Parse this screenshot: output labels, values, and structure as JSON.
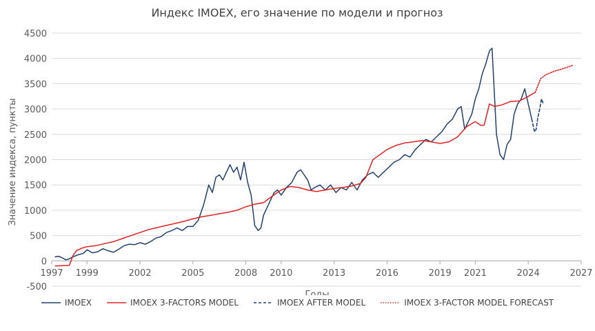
{
  "chart_data": {
    "type": "line",
    "title": "Индекс IMOEX, его значение по модели и прогноз",
    "xlabel": "Годы",
    "ylabel": "Значение индекса, пункты",
    "xlim": [
      1997,
      2027
    ],
    "ylim": [
      -500,
      4500
    ],
    "x_ticks": [
      1997,
      1999,
      2002,
      2005,
      2008,
      2010,
      2013,
      2016,
      2019,
      2021,
      2024,
      2027
    ],
    "x_tick_labels": [
      "1997",
      "1999",
      "2002",
      "2005",
      "2008",
      "2010",
      "2013",
      "2016",
      "2019",
      "2021",
      "2024",
      "2027"
    ],
    "y_ticks": [
      -500,
      0,
      500,
      1000,
      1500,
      2000,
      2500,
      3000,
      3500,
      4000,
      4500
    ],
    "y_tick_labels": [
      "-500",
      "0",
      "500",
      "1000",
      "1500",
      "2000",
      "2500",
      "3000",
      "3500",
      "4000",
      "4500"
    ],
    "legend_position": "bottom",
    "series": [
      {
        "name": "IMOEX",
        "color": "#1f3f6e",
        "style": "solid",
        "x": [
          1997.2,
          1997.4,
          1997.6,
          1997.8,
          1998.0,
          1998.2,
          1998.5,
          1998.8,
          1999.0,
          1999.3,
          1999.6,
          1999.9,
          2000.2,
          2000.5,
          2000.8,
          2001.1,
          2001.4,
          2001.7,
          2002.0,
          2002.3,
          2002.6,
          2002.9,
          2003.2,
          2003.5,
          2003.8,
          2004.1,
          2004.4,
          2004.7,
          2005.0,
          2005.3,
          2005.6,
          2005.9,
          2006.1,
          2006.3,
          2006.5,
          2006.7,
          2006.9,
          2007.1,
          2007.3,
          2007.5,
          2007.7,
          2007.9,
          2008.1,
          2008.3,
          2008.5,
          2008.7,
          2008.85,
          2009.0,
          2009.2,
          2009.4,
          2009.6,
          2009.8,
          2010.0,
          2010.3,
          2010.6,
          2010.9,
          2011.1,
          2011.3,
          2011.5,
          2011.7,
          2011.9,
          2012.2,
          2012.5,
          2012.8,
          2013.1,
          2013.4,
          2013.7,
          2014.0,
          2014.3,
          2014.6,
          2014.9,
          2015.2,
          2015.5,
          2015.8,
          2016.1,
          2016.4,
          2016.7,
          2017.0,
          2017.3,
          2017.6,
          2017.9,
          2018.2,
          2018.5,
          2018.8,
          2019.1,
          2019.4,
          2019.7,
          2020.0,
          2020.2,
          2020.4,
          2020.6,
          2020.8,
          2021.0,
          2021.2,
          2021.4,
          2021.6,
          2021.8,
          2021.95,
          2022.05,
          2022.2,
          2022.4,
          2022.6,
          2022.8,
          2023.0,
          2023.2,
          2023.4,
          2023.6,
          2023.8,
          2024.0,
          2024.2
        ],
        "y": [
          80,
          90,
          60,
          20,
          40,
          80,
          120,
          150,
          220,
          160,
          180,
          240,
          200,
          170,
          230,
          300,
          330,
          320,
          360,
          330,
          380,
          450,
          480,
          560,
          600,
          650,
          600,
          680,
          680,
          800,
          1100,
          1500,
          1350,
          1650,
          1700,
          1600,
          1750,
          1900,
          1750,
          1850,
          1600,
          1950,
          1550,
          1300,
          700,
          600,
          650,
          900,
          1050,
          1200,
          1350,
          1400,
          1300,
          1450,
          1550,
          1750,
          1800,
          1700,
          1600,
          1400,
          1450,
          1500,
          1400,
          1500,
          1350,
          1450,
          1400,
          1550,
          1400,
          1600,
          1700,
          1750,
          1650,
          1750,
          1850,
          1950,
          2000,
          2100,
          2050,
          2200,
          2300,
          2400,
          2350,
          2450,
          2550,
          2700,
          2800,
          3000,
          3050,
          2600,
          2750,
          2900,
          3200,
          3400,
          3700,
          3900,
          4150,
          4200,
          3500,
          2500,
          2100,
          2000,
          2300,
          2400,
          2900,
          3100,
          3200,
          3400,
          3100,
          2800
        ]
      },
      {
        "name": "IMOEX 3-FACTORS MODEL",
        "color": "#e02020",
        "style": "solid",
        "x": [
          1997.2,
          1997.6,
          1998.0,
          1998.2,
          1998.4,
          1998.7,
          1999.0,
          1999.5,
          2000.0,
          2000.5,
          2001.0,
          2001.5,
          2002.0,
          2002.5,
          2003.0,
          2003.5,
          2004.0,
          2004.5,
          2005.0,
          2005.5,
          2006.0,
          2006.5,
          2007.0,
          2007.5,
          2008.0,
          2008.5,
          2009.0,
          2009.5,
          2010.0,
          2010.5,
          2011.0,
          2011.5,
          2012.0,
          2012.5,
          2013.0,
          2013.5,
          2014.0,
          2014.5,
          2014.8,
          2015.2,
          2015.6,
          2016.0,
          2016.5,
          2017.0,
          2017.5,
          2018.0,
          2018.5,
          2019.0,
          2019.5,
          2020.0,
          2020.5,
          2021.0,
          2021.3,
          2021.5,
          2021.8,
          2022.1,
          2022.5,
          2023.0,
          2023.5,
          2024.0,
          2024.4
        ],
        "y": [
          -100,
          -95,
          -90,
          100,
          200,
          250,
          280,
          300,
          340,
          380,
          440,
          500,
          560,
          620,
          660,
          700,
          740,
          780,
          830,
          870,
          900,
          930,
          960,
          1000,
          1070,
          1120,
          1150,
          1280,
          1400,
          1470,
          1450,
          1400,
          1370,
          1400,
          1430,
          1450,
          1480,
          1530,
          1650,
          2000,
          2100,
          2200,
          2280,
          2330,
          2350,
          2380,
          2350,
          2320,
          2350,
          2450,
          2650,
          2750,
          2680,
          2680,
          3100,
          3050,
          3080,
          3150,
          3160,
          3250,
          3330
        ]
      },
      {
        "name": "IMOEX AFTER MODEL",
        "color": "#1f3f6e",
        "style": "dashed",
        "x": [
          2024.2,
          2024.35,
          2024.45,
          2024.55,
          2024.65,
          2024.75,
          2024.85
        ],
        "y": [
          2800,
          2550,
          2600,
          2850,
          3000,
          3200,
          3100
        ]
      },
      {
        "name": "IMOEX 3-FACTOR MODEL FORECAST",
        "color": "#e02020",
        "style": "dotted",
        "x": [
          2024.4,
          2024.7,
          2025.0,
          2025.5,
          2026.0,
          2026.5
        ],
        "y": [
          3330,
          3600,
          3680,
          3750,
          3800,
          3860
        ]
      }
    ]
  }
}
